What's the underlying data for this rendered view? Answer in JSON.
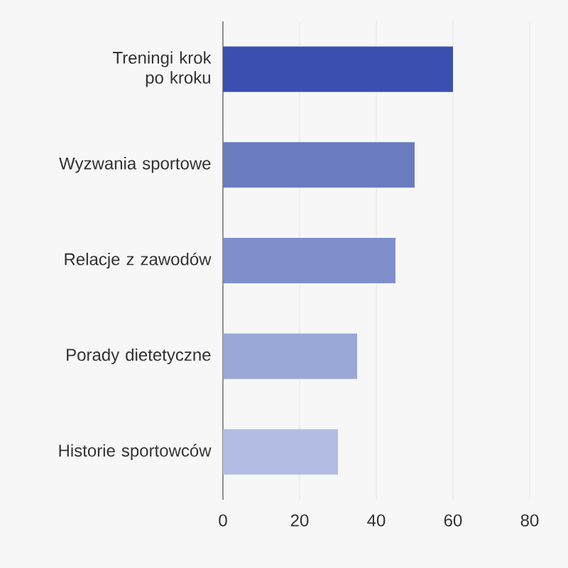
{
  "chart_data": {
    "type": "bar",
    "orientation": "horizontal",
    "categories": [
      "Treningi krok po kroku",
      "Wyzwania sportowe",
      "Relacje z zawodów",
      "Porady dietetyczne",
      "Historie sportowców"
    ],
    "values": [
      60,
      50,
      45,
      35,
      30
    ],
    "colors": [
      "#3a4fb0",
      "#6a7bbf",
      "#7f8fcb",
      "#9aa8d7",
      "#b3bde4"
    ],
    "xlim": [
      0,
      80
    ],
    "xticks": [
      0,
      20,
      40,
      60,
      80
    ],
    "grid": "x"
  }
}
